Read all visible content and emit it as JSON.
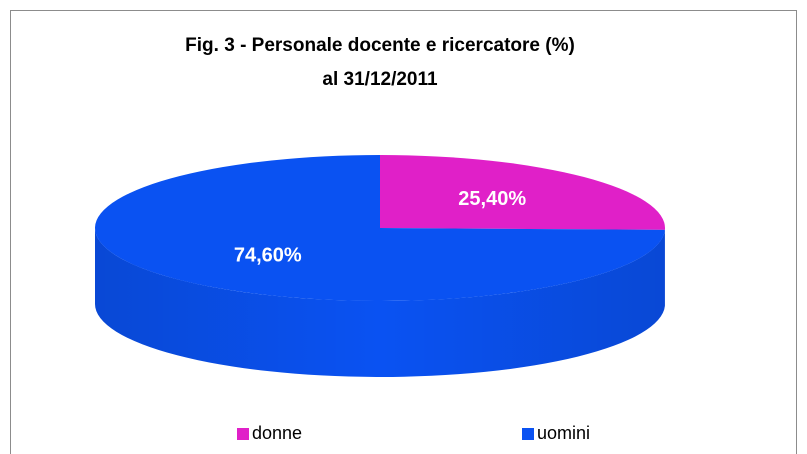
{
  "chart_data": {
    "type": "pie3d",
    "title": "Fig. 3 - Personale docente e ricercatore (%)",
    "subtitle": "al 31/12/2011",
    "categories": [
      "donne",
      "uomini"
    ],
    "values": [
      25.4,
      74.6
    ],
    "value_labels": [
      "25,40%",
      "74,60%"
    ],
    "colors": [
      "#e020c8",
      "#0a52f2"
    ],
    "legend": "bottom"
  }
}
